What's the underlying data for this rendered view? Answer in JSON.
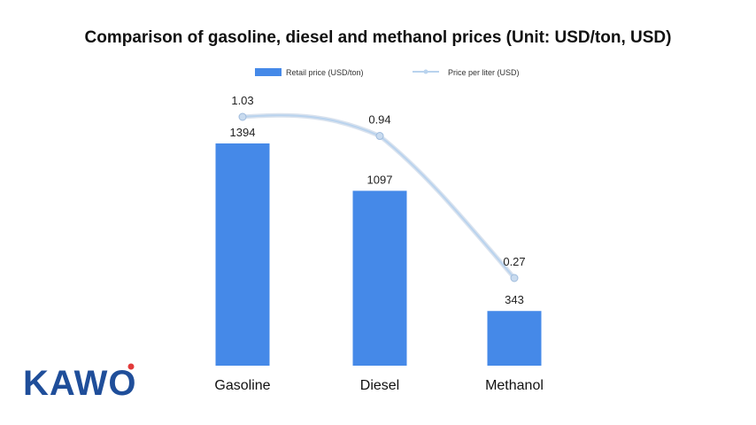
{
  "logo": {
    "text": "KAWO",
    "accent_color": "#e23a3a",
    "color": "#1f4e9a"
  },
  "chart_data": {
    "type": "bar",
    "title": "Comparison of gasoline, diesel and methanol prices (Unit: USD/ton, USD)",
    "categories": [
      "Gasoline",
      "Diesel",
      "Methanol"
    ],
    "series": [
      {
        "name": "Retail price (USD/ton)",
        "kind": "bar",
        "color": "#4589e8",
        "values": [
          1394,
          1097,
          343
        ],
        "labels": [
          "1394",
          "1097",
          "343"
        ]
      },
      {
        "name": "Price per liter (USD)",
        "kind": "line",
        "color": "#b9d3ee",
        "values": [
          1.03,
          0.94,
          0.27
        ],
        "labels": [
          "1.03",
          "0.94",
          "0.27"
        ]
      }
    ],
    "legend_position": "top-center",
    "grid": false
  }
}
